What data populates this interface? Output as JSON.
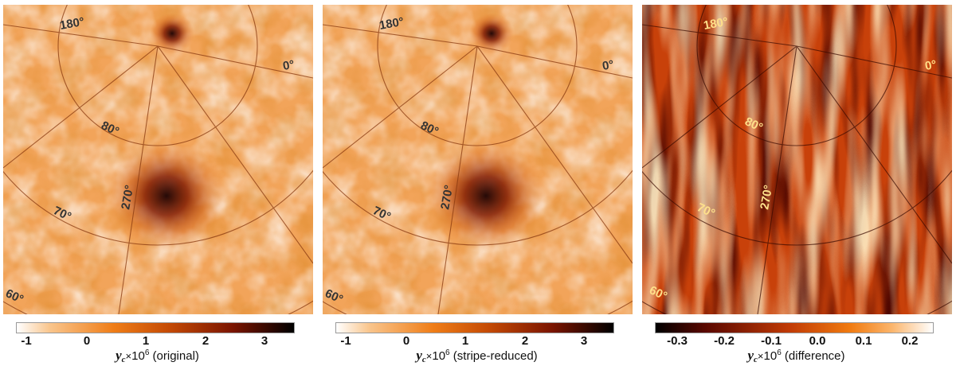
{
  "panels": [
    {
      "variant": "original",
      "labels": {
        "deg180": "180°",
        "deg0": "0°",
        "deg80": "80°",
        "deg70": "70°",
        "deg60": "60°",
        "deg270": "270°"
      },
      "label_color": "#333333",
      "ticks": [
        "-1",
        "0",
        "1",
        "2",
        "3"
      ],
      "caption_symbol": "y",
      "caption_sub": "c",
      "caption_times": "×",
      "caption_ten": "10",
      "caption_exp": "6",
      "caption_tail": "(original)"
    },
    {
      "variant": "stripe-reduced",
      "labels": {
        "deg180": "180°",
        "deg0": "0°",
        "deg80": "80°",
        "deg70": "70°",
        "deg60": "60°",
        "deg270": "270°"
      },
      "label_color": "#333333",
      "ticks": [
        "-1",
        "0",
        "1",
        "2",
        "3"
      ],
      "caption_symbol": "y",
      "caption_sub": "c",
      "caption_times": "×",
      "caption_ten": "10",
      "caption_exp": "6",
      "caption_tail": "(stripe-reduced)"
    },
    {
      "variant": "difference",
      "labels": {
        "deg180": "180°",
        "deg0": "0°",
        "deg80": "80°",
        "deg70": "70°",
        "deg60": "60°",
        "deg270": "270°"
      },
      "label_color": "#ffe08a",
      "ticks": [
        "-0.3",
        "-0.2",
        "-0.1",
        "0.0",
        "0.1",
        "0.2"
      ],
      "caption_symbol": "y",
      "caption_sub": "c",
      "caption_times": "×",
      "caption_ten": "10",
      "caption_exp": "6",
      "caption_tail": "(difference)"
    }
  ],
  "colors": {
    "map_base": "#f2a85c",
    "cmap_low": "#ffffff",
    "cmap_mid": "#ef7d17",
    "cmap_high": "#000000",
    "diff_low": "#000000",
    "diff_mid": "#c03a05",
    "diff_high": "#ffffff"
  }
}
